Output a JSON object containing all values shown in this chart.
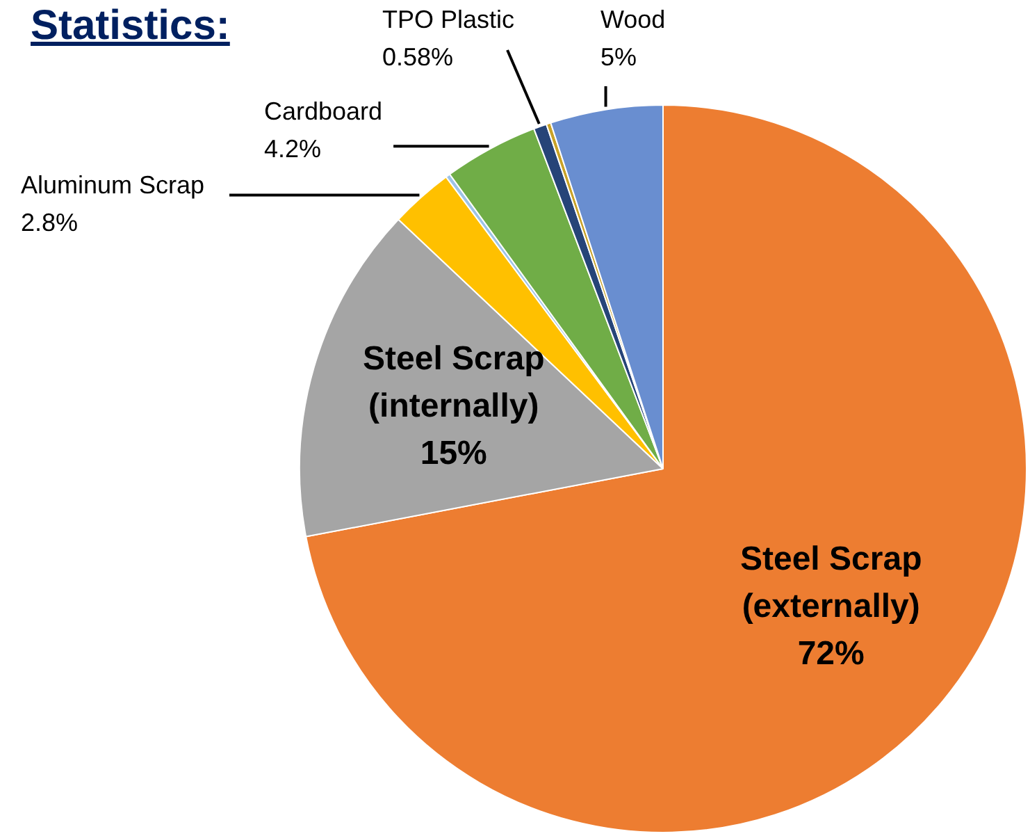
{
  "chart_data": {
    "type": "pie",
    "title": "Statistics:",
    "categories": [
      "Steel Scrap (externally)",
      "Steel Scrap (internally)",
      "Aluminum Scrap",
      null,
      "Cardboard",
      "TPO Plastic",
      null,
      "Wood"
    ],
    "values": [
      72,
      15,
      2.8,
      0.2,
      4.2,
      0.58,
      0.2,
      5
    ],
    "colors": [
      "#ed7d31",
      "#a5a5a5",
      "#ffc000",
      "#9dc3e6",
      "#70ad47",
      "#264478",
      "#c9a227",
      "#698ed0"
    ],
    "value_labels": [
      "72%",
      "15%",
      "2.8%",
      null,
      "4.2%",
      "0.58%",
      null,
      "5%"
    ],
    "legend": false
  }
}
